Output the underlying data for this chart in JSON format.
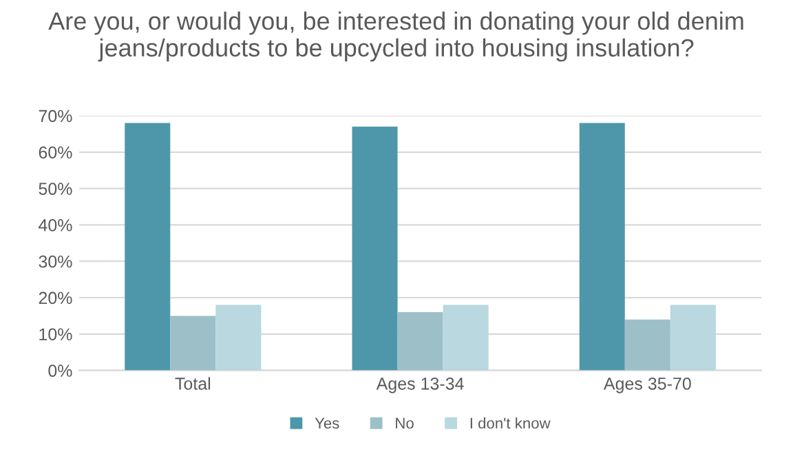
{
  "chart_data": {
    "type": "bar",
    "title": "Are you, or would you, be interested in donating your old denim jeans/products to be upcycled into housing insulation?",
    "categories": [
      "Total",
      "Ages 13-34",
      "Ages 35-70"
    ],
    "series": [
      {
        "name": "Yes",
        "color": "#4e97ab",
        "values": [
          68,
          67,
          68
        ]
      },
      {
        "name": "No",
        "color": "#9dbfc8",
        "values": [
          15,
          16,
          14
        ]
      },
      {
        "name": "I don't know",
        "color": "#b9d8df",
        "values": [
          18,
          18,
          18
        ]
      }
    ],
    "ylim": [
      0,
      70
    ],
    "yticks": [
      {
        "value": 0,
        "label": "0%"
      },
      {
        "value": 10,
        "label": "10%"
      },
      {
        "value": 20,
        "label": "20%"
      },
      {
        "value": 30,
        "label": "30%"
      },
      {
        "value": 40,
        "label": "40%"
      },
      {
        "value": 50,
        "label": "50%"
      },
      {
        "value": 60,
        "label": "60%"
      },
      {
        "value": 70,
        "label": "70%"
      }
    ],
    "grid": "y",
    "legend": "bottom"
  }
}
